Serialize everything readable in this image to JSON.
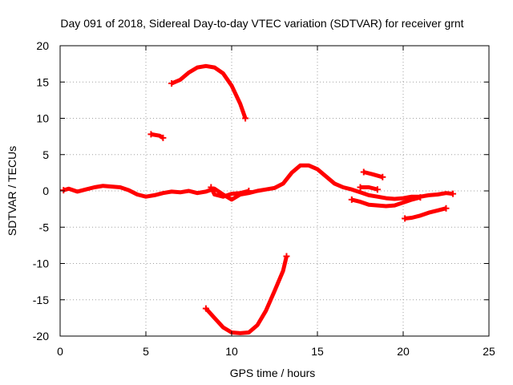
{
  "chart_data": {
    "type": "scatter",
    "title": "Day 091 of 2018, Sidereal Day-to-day VTEC variation (SDTVAR) for receiver grnt",
    "xlabel": "GPS time / hours",
    "ylabel": "SDTVAR / TECUs",
    "xlim": [
      0,
      25
    ],
    "ylim": [
      -20,
      20
    ],
    "xticks": [
      0,
      5,
      10,
      15,
      20,
      25
    ],
    "yticks": [
      20,
      15,
      10,
      5,
      0,
      -5,
      -10,
      -15,
      -20
    ],
    "xtick_labels": [
      "0",
      "5",
      "10",
      "15",
      "20",
      "25"
    ],
    "ytick_labels": [
      "20",
      "15",
      "10",
      "5",
      "0",
      "-5",
      "-10",
      "-15",
      "-20"
    ],
    "grid": true,
    "color": "#ff0000",
    "series": [
      {
        "name": "main-trace",
        "points": [
          [
            0.2,
            0.1
          ],
          [
            0.5,
            0.3
          ],
          [
            1.0,
            -0.1
          ],
          [
            1.5,
            0.2
          ],
          [
            2.0,
            0.5
          ],
          [
            2.5,
            0.7
          ],
          [
            3.0,
            0.6
          ],
          [
            3.5,
            0.5
          ],
          [
            4.0,
            0.1
          ],
          [
            4.5,
            -0.5
          ],
          [
            5.0,
            -0.8
          ],
          [
            5.5,
            -0.6
          ],
          [
            6.0,
            -0.3
          ],
          [
            6.5,
            -0.1
          ],
          [
            7.0,
            -0.2
          ],
          [
            7.5,
            0.0
          ],
          [
            8.0,
            -0.3
          ],
          [
            8.5,
            -0.1
          ],
          [
            9.0,
            0.3
          ],
          [
            9.5,
            -0.5
          ],
          [
            10.0,
            -1.2
          ],
          [
            10.5,
            -0.5
          ],
          [
            11.0,
            -0.3
          ],
          [
            11.5,
            0.0
          ],
          [
            12.0,
            0.2
          ],
          [
            12.5,
            0.4
          ],
          [
            13.0,
            1.0
          ],
          [
            13.5,
            2.5
          ],
          [
            14.0,
            3.5
          ],
          [
            14.5,
            3.5
          ],
          [
            15.0,
            3.0
          ],
          [
            15.5,
            2.0
          ],
          [
            16.0,
            1.0
          ],
          [
            16.5,
            0.5
          ],
          [
            17.0,
            0.2
          ],
          [
            17.5,
            -0.2
          ],
          [
            18.0,
            -0.6
          ],
          [
            18.5,
            -0.8
          ],
          [
            19.0,
            -1.0
          ],
          [
            19.5,
            -1.1
          ],
          [
            20.0,
            -1.0
          ],
          [
            20.5,
            -0.8
          ],
          [
            21.0,
            -0.8
          ],
          [
            21.5,
            -0.6
          ],
          [
            22.0,
            -0.5
          ],
          [
            22.5,
            -0.3
          ],
          [
            22.9,
            -0.4
          ]
        ]
      },
      {
        "name": "secondary-trace",
        "points": [
          [
            8.8,
            0.5
          ],
          [
            9.0,
            -0.5
          ],
          [
            9.5,
            -0.8
          ],
          [
            10.0,
            -0.4
          ],
          [
            10.5,
            -0.3
          ],
          [
            11.0,
            0.0
          ]
        ]
      },
      {
        "name": "top-arc",
        "points": [
          [
            6.5,
            14.8
          ],
          [
            7.0,
            15.3
          ],
          [
            7.5,
            16.3
          ],
          [
            8.0,
            17.0
          ],
          [
            8.5,
            17.2
          ],
          [
            9.0,
            17.0
          ],
          [
            9.5,
            16.2
          ],
          [
            10.0,
            14.5
          ],
          [
            10.5,
            12.0
          ],
          [
            10.8,
            10.0
          ]
        ]
      },
      {
        "name": "small-segment",
        "points": [
          [
            5.3,
            7.8
          ],
          [
            5.8,
            7.6
          ],
          [
            6.0,
            7.3
          ]
        ]
      },
      {
        "name": "bottom-arc",
        "points": [
          [
            8.5,
            -16.2
          ],
          [
            9.0,
            -17.5
          ],
          [
            9.5,
            -18.8
          ],
          [
            10.0,
            -19.5
          ],
          [
            10.5,
            -19.6
          ],
          [
            11.0,
            -19.5
          ],
          [
            11.5,
            -18.5
          ],
          [
            12.0,
            -16.5
          ],
          [
            12.5,
            -13.8
          ],
          [
            13.0,
            -11.0
          ],
          [
            13.2,
            -9.0
          ]
        ]
      },
      {
        "name": "segment-17-19",
        "points": [
          [
            17.5,
            0.5
          ],
          [
            18.0,
            0.5
          ],
          [
            18.5,
            0.2
          ]
        ]
      },
      {
        "name": "upper-right-segment",
        "points": [
          [
            17.7,
            2.6
          ],
          [
            18.2,
            2.3
          ],
          [
            18.8,
            1.9
          ]
        ]
      },
      {
        "name": "lower-right-trace",
        "points": [
          [
            17.0,
            -1.2
          ],
          [
            17.5,
            -1.5
          ],
          [
            18.0,
            -1.9
          ],
          [
            18.5,
            -2.0
          ],
          [
            19.0,
            -2.1
          ],
          [
            19.5,
            -2.0
          ],
          [
            20.0,
            -1.6
          ],
          [
            20.5,
            -1.2
          ],
          [
            21.0,
            -0.9
          ]
        ]
      },
      {
        "name": "far-lower-trace",
        "points": [
          [
            20.1,
            -3.8
          ],
          [
            20.5,
            -3.7
          ],
          [
            21.0,
            -3.4
          ],
          [
            21.5,
            -3.0
          ],
          [
            22.0,
            -2.7
          ],
          [
            22.5,
            -2.4
          ]
        ]
      }
    ]
  }
}
